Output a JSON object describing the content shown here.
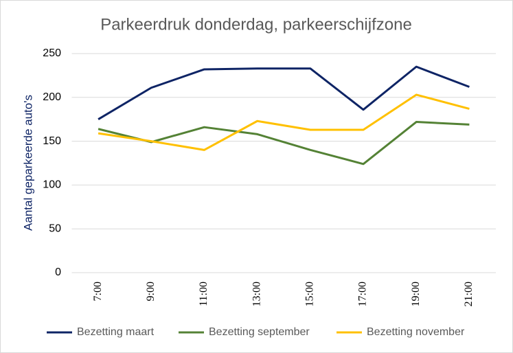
{
  "chart_data": {
    "type": "line",
    "title": "Parkeerdruk donderdag, parkeerschijfzone",
    "y_label": "Aantal geparkeerde auto's",
    "categories": [
      "7:00",
      "9:00",
      "11:00",
      "13:00",
      "15:00",
      "17:00",
      "19:00",
      "21:00"
    ],
    "series": [
      {
        "name": "Bezetting maart",
        "color": "#0e2465",
        "values": [
          175,
          211,
          232,
          233,
          233,
          186,
          235,
          212
        ]
      },
      {
        "name": "Bezetting september",
        "color": "#548235",
        "values": [
          164,
          149,
          166,
          158,
          140,
          124,
          172,
          169
        ]
      },
      {
        "name": "Bezetting november",
        "color": "#ffc000",
        "values": [
          159,
          150,
          140,
          173,
          163,
          163,
          203,
          187
        ]
      }
    ],
    "ylim": [
      0,
      250
    ],
    "yticks": [
      0,
      50,
      100,
      150,
      200,
      250
    ],
    "grid": true,
    "legend": "bottom"
  }
}
